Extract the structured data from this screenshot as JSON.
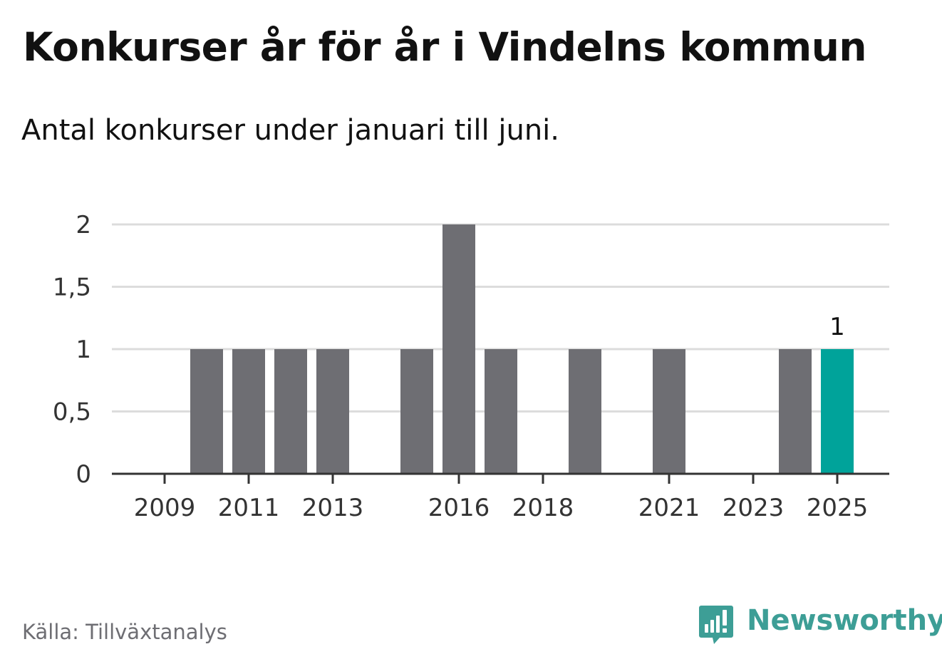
{
  "header": {
    "title": "Konkurser år för år i Vindelns kommun",
    "subtitle": "Antal konkurser under januari till juni."
  },
  "footer": {
    "source": "Källa: Tillväxtanalys",
    "brand": "Newsworthy",
    "brand_icon": "bar-chart-speech-bubble-icon"
  },
  "colors": {
    "bar": "#6e6e73",
    "highlight": "#00a39a",
    "grid": "#dcdcdc",
    "axis": "#333333",
    "brand": "#3d9e96"
  },
  "chart_data": {
    "type": "bar",
    "title": "Konkurser år för år i Vindelns kommun",
    "subtitle": "Antal konkurser under januari till juni.",
    "categories": [
      "2009",
      "2010",
      "2011",
      "2012",
      "2013",
      "2014",
      "2015",
      "2016",
      "2017",
      "2018",
      "2019",
      "2020",
      "2021",
      "2022",
      "2023",
      "2024",
      "2025"
    ],
    "values": [
      0,
      1,
      1,
      1,
      1,
      0,
      1,
      2,
      1,
      0,
      1,
      0,
      1,
      0,
      0,
      1,
      1
    ],
    "x_tick_labels": [
      "2009",
      "2011",
      "2013",
      "2016",
      "2018",
      "2021",
      "2023",
      "2025"
    ],
    "y_ticks": [
      0,
      0.5,
      1,
      1.5,
      2
    ],
    "y_tick_labels": [
      "0",
      "0,5",
      "1",
      "1,5",
      "2"
    ],
    "ylim": [
      0,
      2
    ],
    "xlabel": "",
    "ylabel": "",
    "grid": true,
    "highlight_category": "2025",
    "data_labels": [
      {
        "category": "2025",
        "text": "1"
      }
    ]
  }
}
